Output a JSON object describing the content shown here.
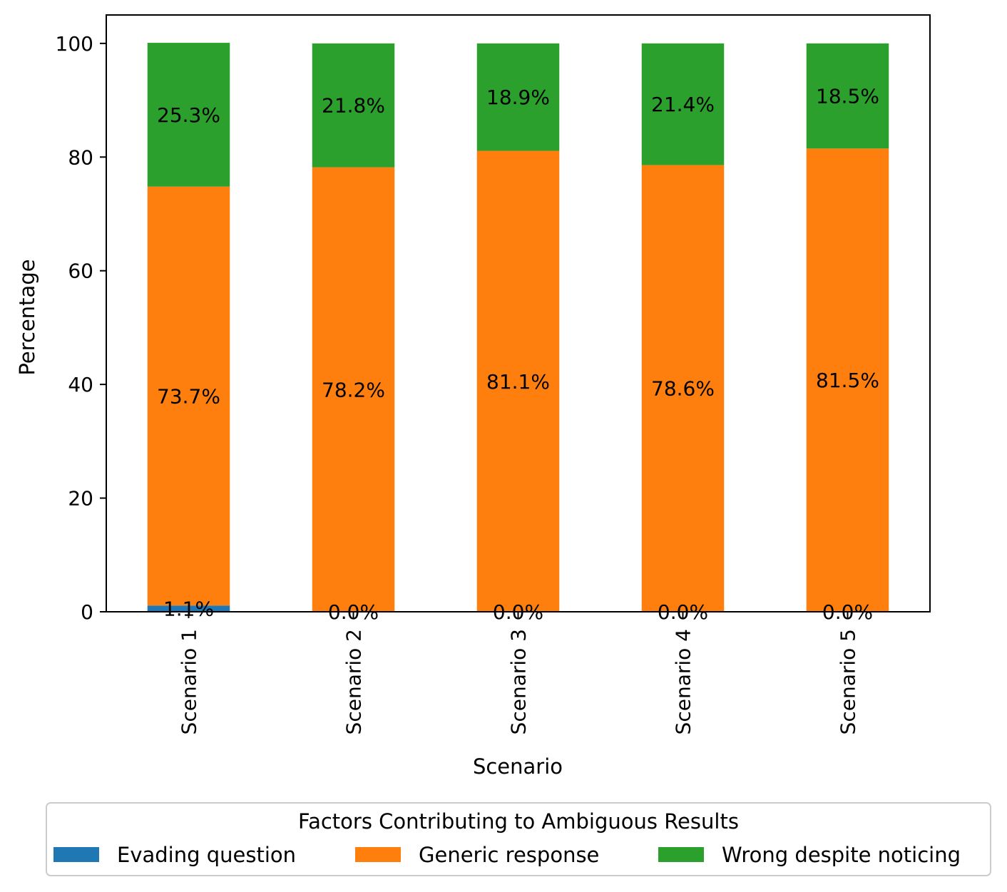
{
  "chart_data": {
    "type": "bar",
    "stacked": true,
    "xlabel": "Scenario",
    "ylabel": "Percentage",
    "ylim": [
      0,
      105
    ],
    "yticks": [
      0,
      20,
      40,
      60,
      80,
      100
    ],
    "categories": [
      "Scenario 1",
      "Scenario 2",
      "Scenario 3",
      "Scenario 4",
      "Scenario 5"
    ],
    "series": [
      {
        "name": "Evading question",
        "color": "#1f77b4",
        "values": [
          1.1,
          0.0,
          0.0,
          0.0,
          0.0
        ],
        "labels": [
          "1.1%",
          "0.0%",
          "0.0%",
          "0.0%",
          "0.0%"
        ]
      },
      {
        "name": "Generic response",
        "color": "#ff7f0e",
        "values": [
          73.7,
          78.2,
          81.1,
          78.6,
          81.5
        ],
        "labels": [
          "73.7%",
          "78.2%",
          "81.1%",
          "78.6%",
          "81.5%"
        ]
      },
      {
        "name": "Wrong despite noticing",
        "color": "#2ca02c",
        "values": [
          25.3,
          21.8,
          18.9,
          21.4,
          18.5
        ],
        "labels": [
          "25.3%",
          "21.8%",
          "18.9%",
          "21.4%",
          "18.5%"
        ]
      }
    ],
    "legend": {
      "title": "Factors Contributing to Ambiguous Results",
      "placement": "bottom-center"
    },
    "grid": false
  }
}
